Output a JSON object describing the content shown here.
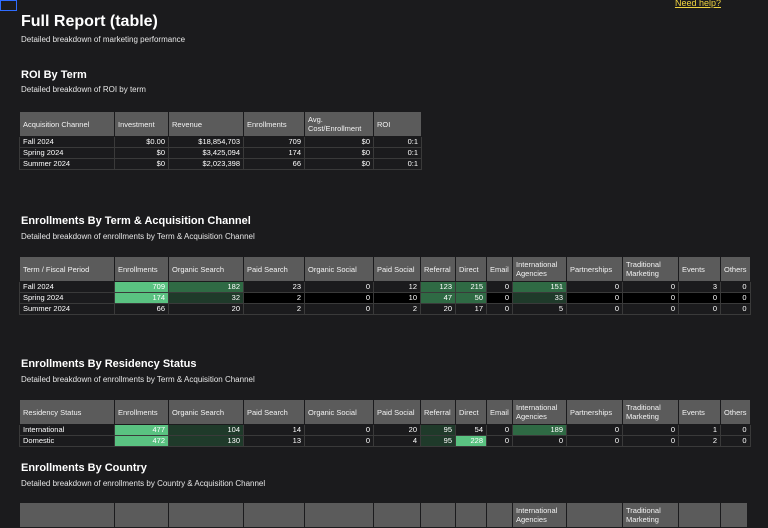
{
  "help_link": "Need help?",
  "page": {
    "title": "Full Report (table)",
    "subtitle": "Detailed breakdown of marketing performance"
  },
  "roi": {
    "title": "ROI By Term",
    "subtitle": "Detailed breakdown of ROI by term",
    "headers": [
      "Acquisition Channel",
      "Investment",
      "Revenue",
      "Enrollments",
      "Avg. Cost/Enrollment",
      "ROI"
    ],
    "rows": [
      [
        "Fall 2024",
        "$0.00",
        "$18,854,703",
        "709",
        "$0",
        "0:1"
      ],
      [
        "Spring 2024",
        "$0",
        "$3,425,094",
        "174",
        "$0",
        "0:1"
      ],
      [
        "Summer 2024",
        "$0",
        "$2,023,398",
        "66",
        "$0",
        "0:1"
      ]
    ]
  },
  "term_channel": {
    "title": "Enrollments By Term & Acquisition Channel",
    "subtitle": "Detailed breakdown of enrollments by Term & Acquisition Channel",
    "headers": [
      "Term / Fiscal Period",
      "Enrollments",
      "Organic Search",
      "Paid Search",
      "Organic Social",
      "Paid Social",
      "Referral",
      "Direct",
      "Email",
      "International Agencies",
      "Partnerships",
      "Traditional Marketing",
      "Events",
      "Others"
    ],
    "rows": [
      [
        "Fall 2024",
        "709",
        "182",
        "23",
        "0",
        "12",
        "123",
        "215",
        "0",
        "151",
        "0",
        "0",
        "3",
        "0"
      ],
      [
        "Spring 2024",
        "174",
        "32",
        "2",
        "0",
        "10",
        "47",
        "50",
        "0",
        "33",
        "0",
        "0",
        "0",
        "0"
      ],
      [
        "Summer 2024",
        "66",
        "20",
        "2",
        "0",
        "2",
        "20",
        "17",
        "0",
        "5",
        "0",
        "0",
        "0",
        "0"
      ]
    ],
    "shades": [
      [
        "",
        "hi",
        "md",
        "",
        "",
        "",
        "md",
        "md",
        "",
        "md",
        "",
        "",
        "",
        ""
      ],
      [
        "",
        "hi",
        "lo",
        "dk",
        "dk",
        "dk",
        "md",
        "md",
        "dk",
        "lo",
        "dk",
        "dk",
        "dk",
        "dk"
      ],
      [
        "",
        "",
        "",
        "",
        "",
        "",
        "",
        "",
        "",
        "",
        "",
        "",
        "",
        ""
      ]
    ]
  },
  "residency": {
    "title": "Enrollments By Residency Status",
    "subtitle": "Detailed breakdown of enrollments by Term & Acquisition Channel",
    "headers": [
      "Residency Status",
      "Enrollments",
      "Organic Search",
      "Paid Search",
      "Organic Social",
      "Paid Social",
      "Referral",
      "Direct",
      "Email",
      "International Agencies",
      "Partnerships",
      "Traditional Marketing",
      "Events",
      "Others"
    ],
    "rows": [
      [
        "International",
        "477",
        "104",
        "14",
        "0",
        "20",
        "95",
        "54",
        "0",
        "189",
        "0",
        "0",
        "1",
        "0"
      ],
      [
        "Domestic",
        "472",
        "130",
        "13",
        "0",
        "4",
        "95",
        "228",
        "0",
        "0",
        "0",
        "0",
        "2",
        "0"
      ]
    ],
    "shades": [
      [
        "",
        "hi",
        "lo",
        "",
        "",
        "",
        "lo",
        "",
        "",
        "md",
        "",
        "",
        "",
        ""
      ],
      [
        "",
        "hi",
        "lo",
        "",
        "",
        "",
        "lo",
        "hi",
        "",
        "",
        "",
        "",
        "",
        ""
      ]
    ]
  },
  "country": {
    "title": "Enrollments By Country",
    "subtitle": "Detailed breakdown of enrollments by Country & Acquisition Channel",
    "headers": [
      "",
      "",
      "",
      "",
      "",
      "",
      "",
      "",
      "",
      "International Agencies",
      "",
      "Traditional Marketing",
      "",
      ""
    ]
  }
}
